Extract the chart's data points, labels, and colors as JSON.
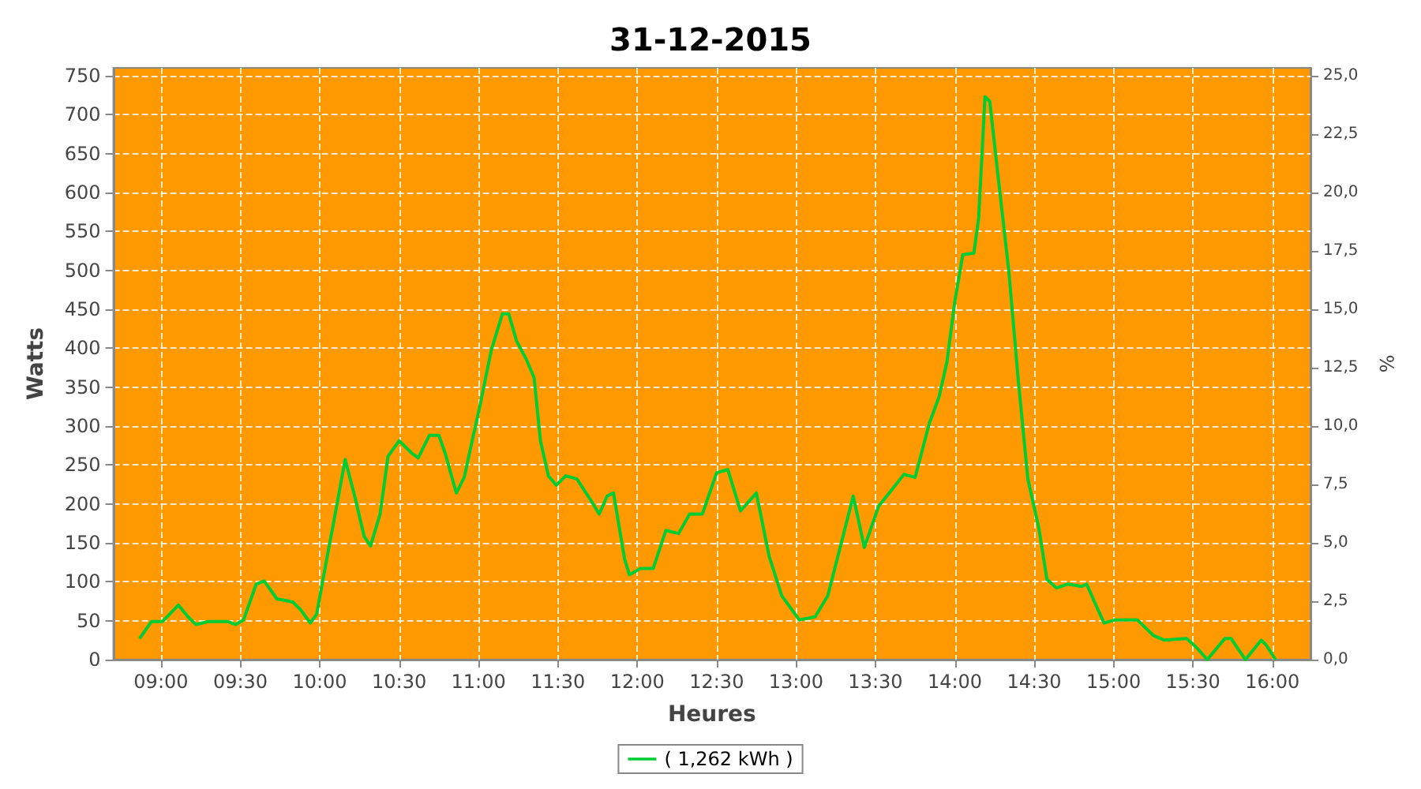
{
  "chart_data": {
    "type": "line",
    "title": "31-12-2015",
    "xlabel": "Heures",
    "ylabel": "Watts",
    "y2label": "%",
    "xlim": [
      8.7,
      16.24
    ],
    "xticks": [
      {
        "value": 9,
        "label": "09:00"
      },
      {
        "value": 9.5,
        "label": "09:30"
      },
      {
        "value": 10,
        "label": "10:00"
      },
      {
        "value": 10.5,
        "label": "10:30"
      },
      {
        "value": 11,
        "label": "11:00"
      },
      {
        "value": 11.5,
        "label": "11:30"
      },
      {
        "value": 12,
        "label": "12:00"
      },
      {
        "value": 12.5,
        "label": "12:30"
      },
      {
        "value": 13,
        "label": "13:00"
      },
      {
        "value": 13.5,
        "label": "13:30"
      },
      {
        "value": 14,
        "label": "14:00"
      },
      {
        "value": 14.5,
        "label": "14:30"
      },
      {
        "value": 15,
        "label": "15:00"
      },
      {
        "value": 15.5,
        "label": "15:30"
      },
      {
        "value": 16,
        "label": "16:00"
      }
    ],
    "ylim": [
      0,
      760
    ],
    "yticks": [
      0,
      50,
      100,
      150,
      200,
      250,
      300,
      350,
      400,
      450,
      500,
      550,
      600,
      650,
      700,
      750
    ],
    "y2lim": [
      0,
      25.33
    ],
    "y2ticks": [
      {
        "value": 0,
        "label": "0,0"
      },
      {
        "value": 2.5,
        "label": "2,5"
      },
      {
        "value": 5,
        "label": "5,0"
      },
      {
        "value": 7.5,
        "label": "7,5"
      },
      {
        "value": 10,
        "label": "10,0"
      },
      {
        "value": 12.5,
        "label": "12,5"
      },
      {
        "value": 15,
        "label": "15,0"
      },
      {
        "value": 17.5,
        "label": "17,5"
      },
      {
        "value": 20,
        "label": "20,0"
      },
      {
        "value": 22.5,
        "label": "22,5"
      },
      {
        "value": 25,
        "label": "25,0"
      }
    ],
    "grid": true,
    "legend": "bottom",
    "marker": "none",
    "line_style": "solid",
    "series": [
      {
        "name": "( 1,262 kWh )",
        "color": "#00cc33",
        "x": [
          8.865,
          8.94,
          9.01,
          9.11,
          9.17,
          9.22,
          9.3,
          9.42,
          9.47,
          9.52,
          9.6,
          9.65,
          9.73,
          9.83,
          9.88,
          9.94,
          9.98,
          10.05,
          10.09,
          10.16,
          10.22,
          10.28,
          10.32,
          10.38,
          10.43,
          10.5,
          10.58,
          10.62,
          10.69,
          10.75,
          10.79,
          10.86,
          10.91,
          10.96,
          11.01,
          11.08,
          11.15,
          11.19,
          11.24,
          11.3,
          11.35,
          11.39,
          11.44,
          11.49,
          11.55,
          11.62,
          11.7,
          11.76,
          11.81,
          11.85,
          11.92,
          11.95,
          12.02,
          12.1,
          12.18,
          12.26,
          12.33,
          12.41,
          12.5,
          12.57,
          12.65,
          12.75,
          12.83,
          12.91,
          13.02,
          13.12,
          13.2,
          13.3,
          13.36,
          13.43,
          13.52,
          13.61,
          13.68,
          13.75,
          13.84,
          13.9,
          13.95,
          14,
          14.05,
          14.12,
          14.15,
          14.19,
          14.22,
          14.27,
          14.34,
          14.4,
          14.46,
          14.53,
          14.58,
          14.64,
          14.71,
          14.8,
          14.83,
          14.88,
          14.94,
          15.01,
          15.15,
          15.25,
          15.32,
          15.46,
          15.52,
          15.59,
          15.7,
          15.74,
          15.83,
          15.93,
          15.96,
          16.02
        ],
        "values": [
          27,
          49,
          49,
          70,
          55,
          45,
          49,
          49,
          45,
          51,
          97,
          101,
          78,
          74,
          64,
          47,
          58,
          136,
          179,
          257,
          210,
          158,
          146,
          187,
          261,
          281,
          265,
          259,
          288,
          288,
          265,
          214,
          234,
          281,
          327,
          397,
          444,
          444,
          409,
          386,
          362,
          281,
          236,
          224,
          236,
          232,
          207,
          187,
          210,
          214,
          129,
          109,
          117,
          117,
          166,
          162,
          187,
          187,
          240,
          244,
          191,
          214,
          133,
          82,
          51,
          55,
          82,
          162,
          210,
          144,
          197,
          220,
          238,
          234,
          304,
          337,
          382,
          460,
          520,
          522,
          567,
          723,
          717,
          625,
          499,
          358,
          232,
          168,
          103,
          92,
          97,
          94,
          97,
          74,
          47,
          51,
          51,
          31,
          25,
          27,
          16,
          0,
          27,
          27,
          0,
          25,
          19,
          0
        ]
      }
    ]
  }
}
